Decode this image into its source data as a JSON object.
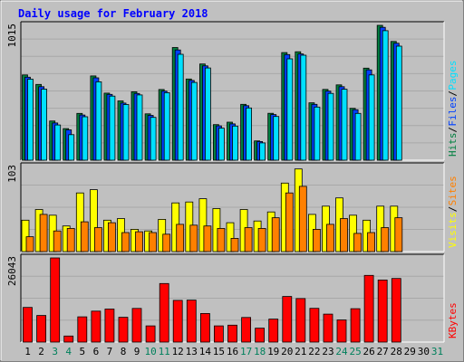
{
  "title": "Daily usage for February 2018",
  "colors": {
    "hits": "#008040",
    "files": "#0040ff",
    "pages": "#00e0ff",
    "visits": "#ffff00",
    "sites": "#ff8000",
    "kbytes": "#ff0000",
    "weekend_day": "#00805c",
    "weekday": "#000000",
    "title_text": "#0000ff"
  },
  "chart_data": [
    {
      "type": "bar",
      "name": "hits-files-pages",
      "max_label": "1015",
      "ylim": [
        0,
        1015
      ],
      "categories": [
        "1",
        "2",
        "3",
        "4",
        "5",
        "6",
        "7",
        "8",
        "9",
        "10",
        "11",
        "12",
        "13",
        "14",
        "15",
        "16",
        "17",
        "18",
        "19",
        "20",
        "21",
        "22",
        "23",
        "24",
        "25",
        "26",
        "27",
        "28",
        "29",
        "30",
        "31"
      ],
      "weekend_days": [
        "3",
        "4",
        "10",
        "11",
        "17",
        "18",
        "24",
        "25",
        "31"
      ],
      "legend": [
        {
          "label": "Hits",
          "color": "#008040"
        },
        {
          "label": "Files",
          "color": "#0040ff"
        },
        {
          "label": "Pages",
          "color": "#00e0ff"
        }
      ],
      "series": [
        {
          "name": "Hits",
          "values": [
            642,
            570,
            295,
            238,
            352,
            634,
            505,
            446,
            515,
            349,
            532,
            848,
            611,
            724,
            268,
            286,
            420,
            145,
            353,
            810,
            816,
            432,
            533,
            567,
            390,
            693,
            1015,
            894,
            0,
            0,
            0
          ]
        },
        {
          "name": "Files",
          "values": [
            625,
            553,
            280,
            228,
            340,
            620,
            495,
            430,
            502,
            337,
            520,
            830,
            600,
            710,
            258,
            273,
            410,
            140,
            343,
            795,
            800,
            420,
            520,
            553,
            380,
            680,
            1000,
            880,
            0,
            0,
            0
          ]
        },
        {
          "name": "Pages",
          "values": [
            610,
            535,
            265,
            192,
            327,
            590,
            482,
            419,
            491,
            322,
            508,
            797,
            585,
            694,
            241,
            257,
            393,
            130,
            329,
            763,
            790,
            400,
            503,
            534,
            352,
            642,
            975,
            858,
            0,
            0,
            0
          ]
        }
      ]
    },
    {
      "type": "bar",
      "name": "visits-sites",
      "max_label": "103",
      "ylim": [
        0,
        103
      ],
      "categories": [
        "1",
        "2",
        "3",
        "4",
        "5",
        "6",
        "7",
        "8",
        "9",
        "10",
        "11",
        "12",
        "13",
        "14",
        "15",
        "16",
        "17",
        "18",
        "19",
        "20",
        "21",
        "22",
        "23",
        "24",
        "25",
        "26",
        "27",
        "28",
        "29",
        "30",
        "31"
      ],
      "legend": [
        {
          "label": "Visits",
          "color": "#ffff00"
        },
        {
          "label": "Sites",
          "color": "#ff8000"
        }
      ],
      "series": [
        {
          "name": "Visits",
          "values": [
            38,
            51,
            44,
            31,
            71,
            75,
            38,
            40,
            27,
            25,
            39,
            59,
            60,
            64,
            52,
            35,
            51,
            37,
            48,
            83,
            100,
            45,
            55,
            65,
            44,
            38,
            55,
            55,
            0,
            0,
            0
          ]
        },
        {
          "name": "Sites",
          "values": [
            18,
            45,
            25,
            28,
            36,
            29,
            35,
            23,
            24,
            23,
            21,
            33,
            32,
            31,
            28,
            16,
            29,
            28,
            41,
            71,
            79,
            27,
            33,
            40,
            22,
            23,
            29,
            41,
            0,
            0,
            0
          ]
        }
      ]
    },
    {
      "type": "bar",
      "name": "kbytes",
      "max_label": "26043",
      "ylim": [
        0,
        26043
      ],
      "categories": [
        "1",
        "2",
        "3",
        "4",
        "5",
        "6",
        "7",
        "8",
        "9",
        "10",
        "11",
        "12",
        "13",
        "14",
        "15",
        "16",
        "17",
        "18",
        "19",
        "20",
        "21",
        "22",
        "23",
        "24",
        "25",
        "26",
        "27",
        "28",
        "29",
        "30",
        "31"
      ],
      "legend": [
        {
          "label": "KBytes",
          "color": "#ff0000"
        }
      ],
      "series": [
        {
          "name": "KBytes",
          "values": [
            10730,
            8225,
            26043,
            1874,
            7812,
            9584,
            10210,
            7675,
            10416,
            5000,
            18120,
            12900,
            13000,
            8850,
            5000,
            5223,
            7615,
            4300,
            7100,
            14100,
            13480,
            10440,
            8640,
            6854,
            10340,
            20650,
            19200,
            19700,
            0,
            0,
            0
          ]
        }
      ]
    }
  ]
}
